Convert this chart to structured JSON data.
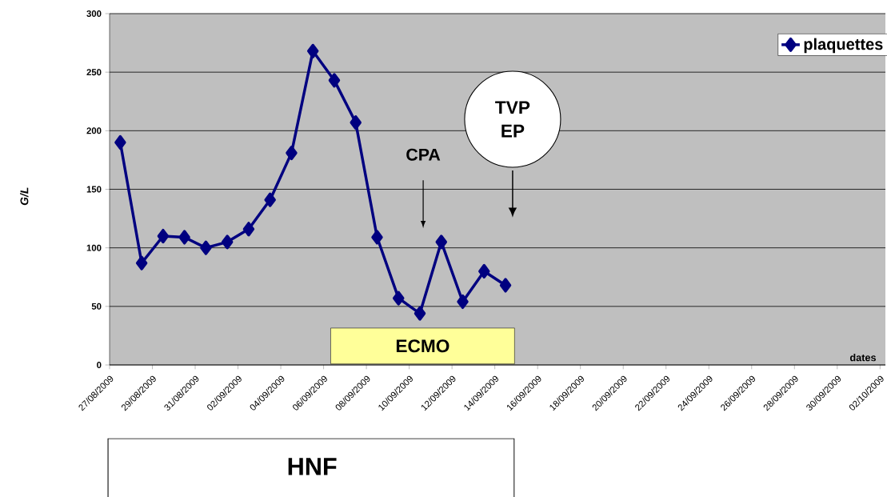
{
  "chart_data": {
    "type": "line",
    "xlabel": "dates",
    "ylabel": "G/L",
    "x": [
      "2009-08-27T12:00",
      "2009-08-28T12:00",
      "2009-08-29T12:00",
      "2009-08-30T12:00",
      "2009-08-31T12:00",
      "2009-09-01T12:00",
      "2009-09-02T12:00",
      "2009-09-03T12:00",
      "2009-09-04T12:00",
      "2009-09-05T12:00",
      "2009-09-06T12:00",
      "2009-09-07T12:00",
      "2009-09-08T12:00",
      "2009-09-09T12:00",
      "2009-09-10T12:00",
      "2009-09-11T12:00",
      "2009-09-12T12:00",
      "2009-09-13T12:00",
      "2009-09-14T12:00"
    ],
    "series": [
      {
        "name": "plaquettes",
        "color": "#000080",
        "values": [
          190,
          87,
          110,
          109,
          100,
          105,
          116,
          141,
          181,
          268,
          243,
          207,
          109,
          57,
          44,
          105,
          54,
          80,
          68
        ]
      }
    ],
    "xlim": [
      "2009-08-27",
      "2009-10-02T06:00"
    ],
    "xticks": [
      {
        "value": "2009-08-27",
        "label": "27/08/2009"
      },
      {
        "value": "2009-08-29",
        "label": "29/08/2009"
      },
      {
        "value": "2009-08-31",
        "label": "31/08/2009"
      },
      {
        "value": "2009-09-02",
        "label": "02/09/2009"
      },
      {
        "value": "2009-09-04",
        "label": "04/09/2009"
      },
      {
        "value": "2009-09-06",
        "label": "06/09/2009"
      },
      {
        "value": "2009-09-08",
        "label": "08/09/2009"
      },
      {
        "value": "2009-09-10",
        "label": "10/09/2009"
      },
      {
        "value": "2009-09-12",
        "label": "12/09/2009"
      },
      {
        "value": "2009-09-14",
        "label": "14/09/2009"
      },
      {
        "value": "2009-09-16",
        "label": "16/09/2009"
      },
      {
        "value": "2009-09-18",
        "label": "18/09/2009"
      },
      {
        "value": "2009-09-20",
        "label": "20/09/2009"
      },
      {
        "value": "2009-09-22",
        "label": "22/09/2009"
      },
      {
        "value": "2009-09-24",
        "label": "24/09/2009"
      },
      {
        "value": "2009-09-26",
        "label": "26/09/2009"
      },
      {
        "value": "2009-09-28",
        "label": "28/09/2009"
      },
      {
        "value": "2009-09-30",
        "label": "30/09/2009"
      },
      {
        "value": "2009-10-02",
        "label": "02/10/2009"
      }
    ],
    "ylim": [
      0,
      300
    ],
    "yticks": [
      0,
      50,
      100,
      150,
      200,
      250,
      300
    ],
    "grid": "y",
    "legend": "top right",
    "marker": "diamond",
    "line_style": "solid",
    "annotations": [
      "CPA",
      "TVP EP",
      "ECMO",
      "HNF"
    ]
  }
}
